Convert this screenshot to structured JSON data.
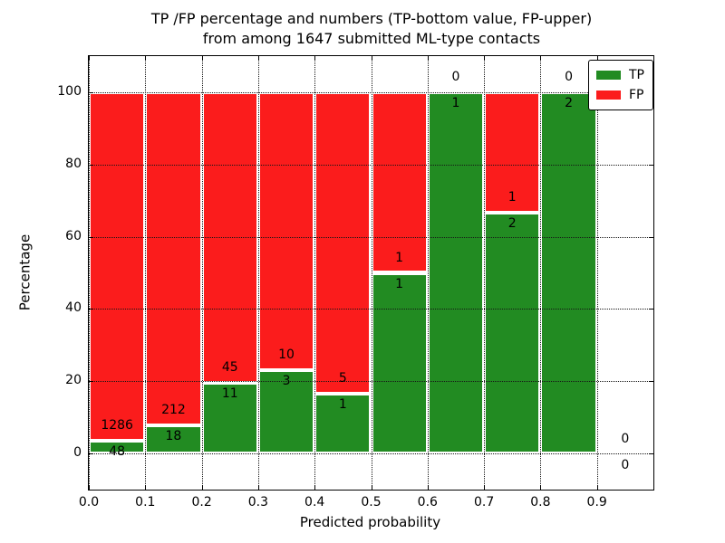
{
  "title": {
    "line1": "TP /FP percentage and numbers (TP-bottom value, FP-upper)",
    "line2": "from among 1647 submitted ML-type contacts"
  },
  "axes": {
    "xlabel": "Predicted probability",
    "ylabel": "Percentage",
    "x_tick_labels": [
      "0.0",
      "0.1",
      "0.2",
      "0.3",
      "0.4",
      "0.5",
      "0.6",
      "0.7",
      "0.8",
      "0.9"
    ],
    "y_tick_labels": [
      "0",
      "20",
      "40",
      "60",
      "80",
      "100"
    ]
  },
  "legend": {
    "items": [
      {
        "label": "TP",
        "color": "#228b22"
      },
      {
        "label": "FP",
        "color": "#fb1c1c"
      }
    ]
  },
  "colors": {
    "tp": "#228b22",
    "fp": "#fb1c1c",
    "grid": "#161616",
    "frame": "#000000",
    "background": "#ffffff",
    "text": "#000000"
  },
  "chart_data": {
    "type": "bar",
    "stacked": true,
    "title": "TP /FP percentage and numbers (TP-bottom value, FP-upper)\nfrom among 1647 submitted ML-type contacts",
    "xlabel": "Predicted probability",
    "ylabel": "Percentage",
    "total_contacts": 1647,
    "xlim": [
      0.0,
      1.0
    ],
    "ylim": [
      -10,
      110
    ],
    "grid": true,
    "legend_position": "upper right",
    "bin_width": 0.1,
    "bin_starts": [
      0.0,
      0.1,
      0.2,
      0.3,
      0.4,
      0.5,
      0.6,
      0.7,
      0.8,
      0.9
    ],
    "x_grid_values": [
      0.0,
      0.1,
      0.2,
      0.3,
      0.4,
      0.5,
      0.6,
      0.7,
      0.8,
      0.9
    ],
    "y_grid_values": [
      0,
      20,
      40,
      60,
      80,
      100
    ],
    "series": [
      {
        "name": "TP",
        "color": "#228b22",
        "counts": [
          48,
          18,
          11,
          3,
          1,
          1,
          1,
          2,
          2,
          0
        ],
        "pct": [
          3.6,
          7.83,
          19.64,
          23.08,
          16.67,
          50.0,
          100.0,
          66.67,
          100.0,
          0.0
        ]
      },
      {
        "name": "FP",
        "color": "#fb1c1c",
        "counts": [
          1286,
          212,
          45,
          10,
          5,
          1,
          0,
          1,
          0,
          0
        ],
        "pct": [
          96.4,
          92.17,
          80.36,
          76.92,
          83.33,
          50.0,
          0.0,
          33.33,
          0.0,
          0.0
        ]
      }
    ]
  }
}
